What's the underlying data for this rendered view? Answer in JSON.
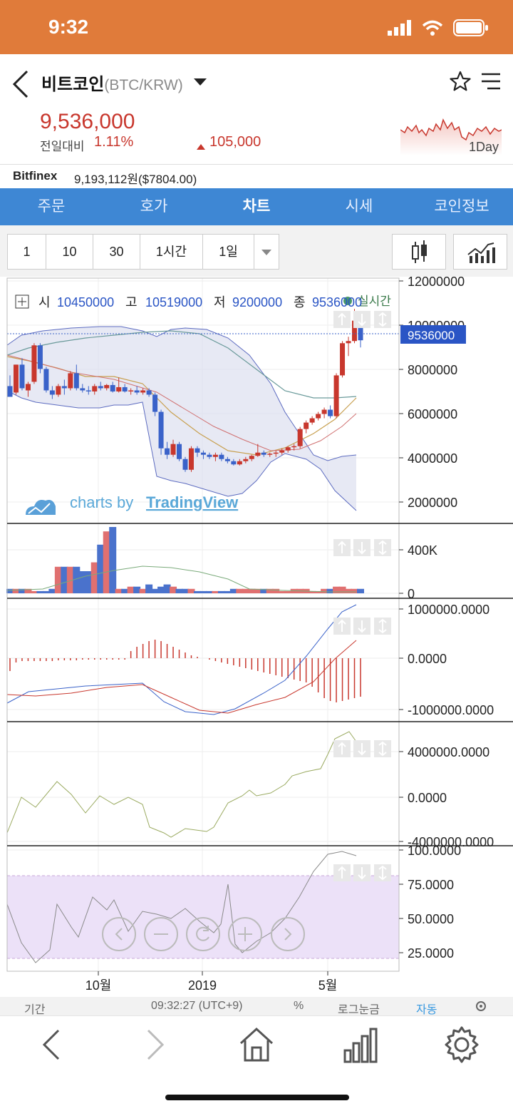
{
  "status": {
    "time": "9:32"
  },
  "header": {
    "coin_name": "비트코인",
    "coin_pair": "(BTC/KRW)",
    "price": "9,536,000",
    "change_label": "전일대비",
    "change_pct": "1.11%",
    "change_abs": "105,000",
    "spark_label": "1Day"
  },
  "exchange": {
    "name": "Bitfinex",
    "value": "9,193,112원($7804.00)"
  },
  "tabs": [
    "주문",
    "호가",
    "차트",
    "시세",
    "코인정보"
  ],
  "active_tab": "차트",
  "periods": [
    "1",
    "10",
    "30",
    "1시간",
    "1일"
  ],
  "ohlc": {
    "open_label": "시",
    "open": "10450000",
    "high_label": "고",
    "high": "10519000",
    "low_label": "저",
    "low": "9200000",
    "close_label": "종",
    "close": "9536000",
    "realtime": "실시간"
  },
  "watermark": {
    "prefix": "charts by",
    "brand": "TradingView"
  },
  "current_price_tag": "9536000",
  "colors": {
    "up": "#c8372d",
    "down": "#3a62c9",
    "accent": "#e07b3a",
    "tab_bg": "#3e87d4"
  },
  "footer": {
    "period": "기간",
    "time": "09:32:27 (UTC+9)",
    "pct": "%",
    "log": "로그눈금",
    "auto": "자동"
  },
  "chart_data": [
    {
      "type": "candlestick",
      "title": "",
      "y_ticks": [
        "12000000",
        "10000000",
        "8000000",
        "6000000",
        "4000000",
        "2000000"
      ],
      "ylim": [
        1000000,
        12500000
      ],
      "x_ticks": [
        "10월",
        "2019",
        "5월"
      ],
      "candles": [
        [
          7400000,
          7900000,
          6900000,
          6900000
        ],
        [
          7100000,
          8400000,
          7000000,
          8400000
        ],
        [
          8400000,
          8700000,
          7200000,
          7300000
        ],
        [
          7200000,
          7600000,
          6900000,
          7500000
        ],
        [
          7600000,
          9400000,
          7500000,
          9300000
        ],
        [
          9300000,
          9400000,
          8000000,
          8200000
        ],
        [
          8200000,
          8300000,
          7100000,
          7200000
        ],
        [
          7200000,
          7400000,
          6800000,
          7000000
        ],
        [
          7000000,
          7500000,
          6900000,
          7400000
        ],
        [
          7400000,
          7700000,
          7000000,
          7300000
        ],
        [
          7300000,
          8100000,
          7200000,
          8000000
        ],
        [
          8000000,
          8400000,
          7200000,
          7300000
        ],
        [
          7300000,
          7500000,
          7100000,
          7200000
        ],
        [
          7200000,
          7400000,
          7000000,
          7150000
        ],
        [
          7150000,
          7500000,
          7000000,
          7400000
        ],
        [
          7400000,
          7600000,
          7200000,
          7300000
        ],
        [
          7300000,
          7500000,
          7200000,
          7450000
        ],
        [
          7450000,
          7600000,
          7100000,
          7150000
        ],
        [
          7150000,
          7800000,
          7100000,
          7350000
        ],
        [
          7350000,
          7500000,
          7100000,
          7150000
        ],
        [
          7150000,
          7300000,
          7000000,
          7200000
        ],
        [
          7200000,
          7400000,
          7000000,
          7100000
        ],
        [
          7100000,
          7300000,
          7000000,
          7200000
        ],
        [
          7200000,
          7300000,
          6900000,
          7000000
        ],
        [
          7000000,
          7100000,
          6000000,
          6200000
        ],
        [
          6200000,
          6300000,
          4200000,
          4500000
        ],
        [
          4500000,
          4800000,
          4000000,
          4200000
        ],
        [
          4200000,
          4900000,
          4100000,
          4700000
        ],
        [
          4700000,
          4800000,
          3900000,
          4000000
        ],
        [
          4000000,
          4100000,
          3400000,
          3500000
        ],
        [
          3500000,
          4600000,
          3400000,
          4500000
        ],
        [
          4500000,
          4600000,
          4100000,
          4300000
        ],
        [
          4300000,
          4400000,
          4000000,
          4200000
        ],
        [
          4200000,
          4300000,
          4000000,
          4100000
        ],
        [
          4100000,
          4300000,
          3900000,
          4200000
        ],
        [
          4200000,
          4300000,
          3900000,
          4000000
        ],
        [
          4000000,
          4100000,
          3800000,
          3900000
        ],
        [
          3900000,
          4000000,
          3700000,
          3750000
        ],
        [
          3750000,
          4000000,
          3700000,
          3900000
        ],
        [
          3900000,
          4100000,
          3800000,
          4000000
        ],
        [
          4000000,
          4200000,
          3900000,
          4150000
        ],
        [
          4150000,
          4700000,
          4100000,
          4300000
        ],
        [
          4300000,
          4400000,
          4100000,
          4200000
        ],
        [
          4200000,
          4300000,
          4100000,
          4250000
        ],
        [
          4250000,
          4400000,
          4100000,
          4300000
        ],
        [
          4300000,
          4500000,
          4200000,
          4400000
        ],
        [
          4400000,
          4600000,
          4300000,
          4550000
        ],
        [
          4550000,
          4700000,
          4400000,
          4600000
        ],
        [
          4600000,
          5500000,
          4500000,
          5400000
        ],
        [
          5400000,
          5800000,
          5200000,
          5700000
        ],
        [
          5700000,
          6000000,
          5600000,
          5900000
        ],
        [
          5900000,
          6200000,
          5800000,
          6100000
        ],
        [
          6100000,
          6400000,
          5900000,
          6300000
        ],
        [
          6300000,
          6500000,
          5900000,
          6000000
        ],
        [
          6000000,
          8000000,
          5900000,
          7900000
        ],
        [
          7900000,
          9500000,
          7800000,
          9400000
        ],
        [
          9400000,
          9700000,
          8800000,
          9500000
        ],
        [
          9500000,
          11000000,
          9400000,
          10450000
        ],
        [
          10450000,
          10519000,
          9200000,
          9536000
        ]
      ]
    },
    {
      "type": "bar",
      "title": "",
      "y_ticks": [
        "400K",
        "0"
      ]
    },
    {
      "type": "line",
      "title": "",
      "y_ticks": [
        "1000000.0000",
        "0.0000",
        "-1000000.0000"
      ]
    },
    {
      "type": "line",
      "title": "",
      "y_ticks": [
        "4000000.0000",
        "0.0000",
        "-4000000.0000"
      ]
    },
    {
      "type": "line",
      "title": "",
      "y_ticks": [
        "100.0000",
        "75.0000",
        "50.0000",
        "25.0000"
      ]
    }
  ]
}
